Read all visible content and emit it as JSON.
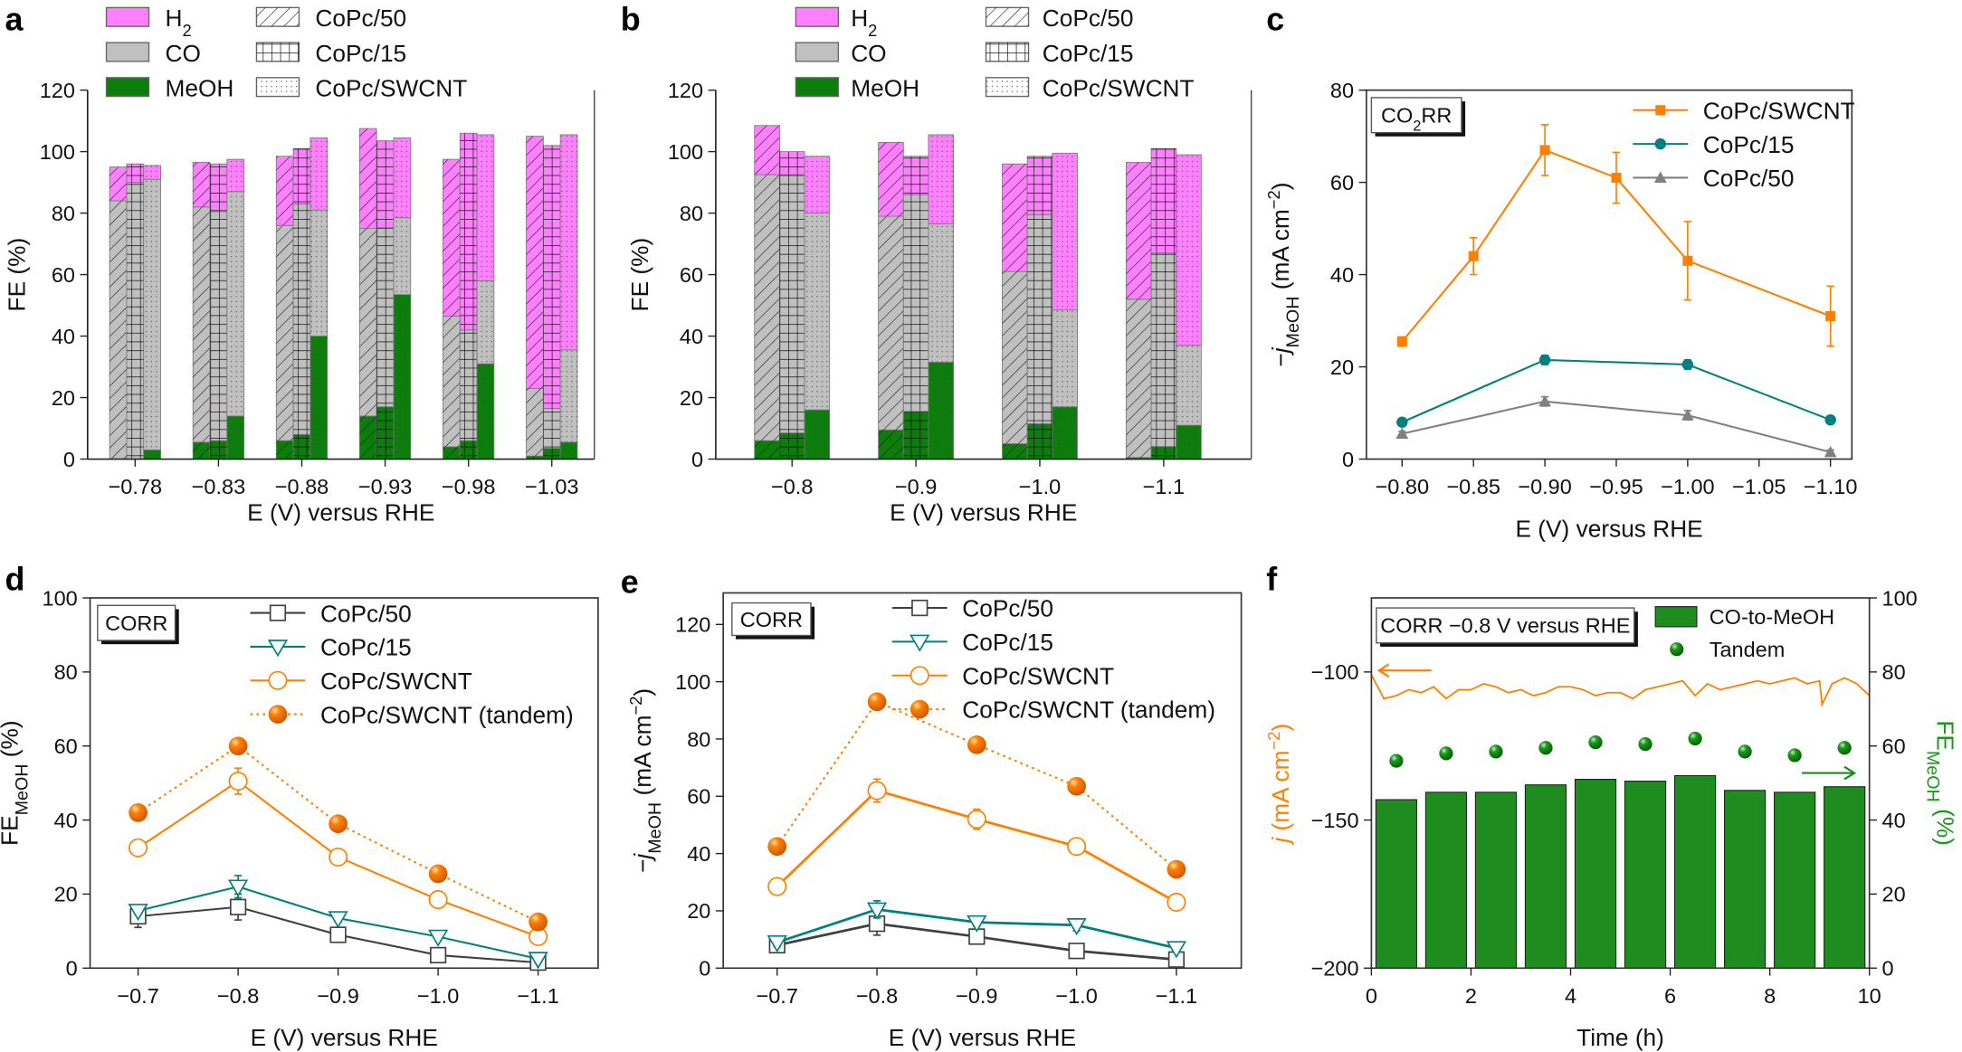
{
  "colors": {
    "H2": "#ff80ff",
    "CO": "#c0c0c0",
    "MeOH": "#0b7d0b",
    "orange": "#ff8000",
    "teal": "#008080",
    "gray": "#808080",
    "dark": "#404040",
    "bar_green": "#1e8c1e"
  },
  "chart_data": [
    {
      "panel_label": "a",
      "type": "bar",
      "stacked": true,
      "xlabel": "E (V) versus RHE",
      "ylabel": "FE (%)",
      "ylim": [
        0,
        120
      ],
      "yticks": [
        "0",
        "20",
        "40",
        "60",
        "80",
        "100",
        "120"
      ],
      "categories": [
        "−0.78",
        "−0.83",
        "−0.88",
        "−0.93",
        "−0.98",
        "−1.03"
      ],
      "legend_products": [
        {
          "key": "H2",
          "main": "H",
          "sub": "2"
        },
        {
          "key": "CO",
          "main": "CO",
          "sub": ""
        },
        {
          "key": "MeOH",
          "main": "MeOH",
          "sub": ""
        }
      ],
      "legend_catalysts": [
        {
          "name": "CoPc/50",
          "pattern": "diagonal-hatch"
        },
        {
          "name": "CoPc/15",
          "pattern": "grid"
        },
        {
          "name": "CoPc/SWCNT",
          "pattern": "dots"
        }
      ],
      "series": [
        {
          "name": "CoPc/50",
          "MeOH": [
            0,
            5.5,
            6,
            14,
            4,
            1
          ],
          "CO": [
            84,
            76.5,
            70,
            61,
            42.5,
            22
          ],
          "H2": [
            11,
            14.5,
            22.5,
            32.5,
            51,
            82
          ]
        },
        {
          "name": "CoPc/15",
          "MeOH": [
            0,
            6,
            8,
            17,
            6,
            3.5
          ],
          "CO": [
            90,
            74.5,
            75,
            58,
            36,
            13
          ],
          "H2": [
            6,
            15.5,
            18,
            28.5,
            64,
            85.5
          ]
        },
        {
          "name": "CoPc/SWCNT",
          "MeOH": [
            3,
            14,
            40,
            53.5,
            31,
            5.5
          ],
          "CO": [
            88,
            73,
            41,
            25,
            27,
            30
          ],
          "H2": [
            4.5,
            10.5,
            23.5,
            26,
            47.5,
            70
          ]
        }
      ]
    },
    {
      "panel_label": "b",
      "type": "bar",
      "stacked": true,
      "xlabel": "E (V) versus RHE",
      "ylabel": "FE (%)",
      "ylim": [
        0,
        120
      ],
      "yticks": [
        "0",
        "20",
        "40",
        "60",
        "80",
        "100",
        "120"
      ],
      "categories": [
        "−0.8",
        "−0.9",
        "−1.0",
        "−1.1"
      ],
      "legend_products": [
        {
          "key": "H2",
          "main": "H",
          "sub": "2"
        },
        {
          "key": "CO",
          "main": "CO",
          "sub": ""
        },
        {
          "key": "MeOH",
          "main": "MeOH",
          "sub": ""
        }
      ],
      "legend_catalysts": [
        {
          "name": "CoPc/50",
          "pattern": "diagonal-hatch"
        },
        {
          "name": "CoPc/15",
          "pattern": "grid"
        },
        {
          "name": "CoPc/SWCNT",
          "pattern": "dots"
        }
      ],
      "series": [
        {
          "name": "CoPc/50",
          "MeOH": [
            6,
            9.5,
            5,
            0.5
          ],
          "CO": [
            86.5,
            69.5,
            56,
            51.5
          ],
          "H2": [
            16,
            24,
            35,
            44.5
          ]
        },
        {
          "name": "CoPc/15",
          "MeOH": [
            8.5,
            15.5,
            11.5,
            4
          ],
          "CO": [
            84,
            70.5,
            68,
            63
          ],
          "H2": [
            7.5,
            12.5,
            19,
            34
          ]
        },
        {
          "name": "CoPc/SWCNT",
          "MeOH": [
            16,
            31.5,
            17,
            11
          ],
          "CO": [
            64,
            45,
            31.5,
            26
          ],
          "H2": [
            18.5,
            29,
            51,
            62
          ]
        }
      ]
    },
    {
      "panel_label": "c",
      "type": "line",
      "annotation": {
        "main": "CO",
        "sub": "2",
        "post": "RR"
      },
      "xlabel": "E (V) versus RHE",
      "ylabel_parts": [
        {
          "t": "−"
        },
        {
          "t": "j",
          "f": "italic"
        },
        {
          "t": "MeOH",
          "f": "sub"
        },
        {
          "t": " (mA cm"
        },
        {
          "t": "−2",
          "f": "sup"
        },
        {
          "t": ")"
        }
      ],
      "xlim": [
        -0.775,
        -1.115
      ],
      "ylim": [
        0,
        80
      ],
      "xticks": [
        -0.8,
        -0.85,
        -0.9,
        -0.95,
        -1.0,
        -1.05,
        -1.1
      ],
      "xtick_labels": [
        "−0.80",
        "−0.85",
        "−0.90",
        "−0.95",
        "−1.00",
        "−1.05",
        "−1.10"
      ],
      "yticks": [
        0,
        20,
        40,
        60,
        80
      ],
      "ytick_labels": [
        "0",
        "20",
        "40",
        "60",
        "80"
      ],
      "legend": "top-right",
      "series": [
        {
          "name": "CoPc/SWCNT",
          "color": "#ff8000",
          "marker": "square",
          "x": [
            -0.8,
            -0.85,
            -0.9,
            -0.95,
            -1.0,
            -1.1
          ],
          "y": [
            25.5,
            44,
            67,
            61,
            43,
            31
          ],
          "err": [
            1,
            4,
            5.5,
            5.5,
            8.5,
            6.5
          ]
        },
        {
          "name": "CoPc/15",
          "color": "#008080",
          "marker": "circle",
          "x": [
            -0.8,
            -0.9,
            -1.0,
            -1.1
          ],
          "y": [
            8,
            21.5,
            20.5,
            8.5
          ],
          "err": [
            0.5,
            1,
            1,
            0.5
          ]
        },
        {
          "name": "CoPc/50",
          "color": "#808080",
          "marker": "triangle",
          "x": [
            -0.8,
            -0.9,
            -1.0,
            -1.1
          ],
          "y": [
            5.5,
            12.5,
            9.5,
            1.5
          ],
          "err": [
            0.5,
            1,
            1,
            0.5
          ]
        }
      ]
    },
    {
      "panel_label": "d",
      "type": "line",
      "annotation": {
        "main": "CORR",
        "sub": "",
        "post": ""
      },
      "xlabel": "E (V) versus RHE",
      "ylabel_parts": [
        {
          "t": "FE"
        },
        {
          "t": "MeOH",
          "f": "sub"
        },
        {
          "t": " (%)"
        }
      ],
      "xlim": [
        -0.652,
        -1.16
      ],
      "ylim": [
        0,
        100
      ],
      "xticks": [
        -0.7,
        -0.8,
        -0.9,
        -1.0,
        -1.1
      ],
      "xtick_labels": [
        "−0.7",
        "−0.8",
        "−0.9",
        "−1.0",
        "−1.1"
      ],
      "yticks": [
        0,
        20,
        40,
        60,
        80,
        100
      ],
      "ytick_labels": [
        "0",
        "20",
        "40",
        "60",
        "80",
        "100"
      ],
      "legend": "top-center",
      "series": [
        {
          "name": "CoPc/50",
          "color": "#404040",
          "marker": "open-square",
          "x": [
            -0.7,
            -0.8,
            -0.9,
            -1.0,
            -1.1
          ],
          "y": [
            14,
            16.5,
            9,
            3.5,
            1.5
          ],
          "err": [
            3,
            3.5,
            1.5,
            1.5,
            1.5
          ]
        },
        {
          "name": "CoPc/15",
          "color": "#008080",
          "marker": "open-triangle-down",
          "x": [
            -0.7,
            -0.8,
            -0.9,
            -1.0,
            -1.1
          ],
          "y": [
            15.5,
            22,
            13.5,
            8.5,
            2.5
          ],
          "err": [
            1,
            3,
            1,
            1,
            1
          ]
        },
        {
          "name": "CoPc/SWCNT",
          "color": "#ff8000",
          "marker": "open-circle",
          "x": [
            -0.7,
            -0.8,
            -0.9,
            -1.0,
            -1.1
          ],
          "y": [
            32.5,
            50.5,
            30,
            18.5,
            8.5
          ],
          "err": [
            2,
            3.5,
            1.5,
            1.5,
            1.5
          ]
        },
        {
          "name": "CoPc/SWCNT (tandem)",
          "color": "#ff8000",
          "marker": "filled-circle",
          "dashed": true,
          "x": [
            -0.7,
            -0.8,
            -0.9,
            -1.0,
            -1.1
          ],
          "y": [
            42,
            60,
            39,
            25.5,
            12.5
          ],
          "err": [
            0,
            0,
            0,
            0,
            0
          ]
        }
      ]
    },
    {
      "panel_label": "e",
      "type": "line",
      "annotation": {
        "main": "CORR",
        "sub": "",
        "post": ""
      },
      "xlabel": "E (V) versus RHE",
      "ylabel_parts": [
        {
          "t": "−"
        },
        {
          "t": "j",
          "f": "italic"
        },
        {
          "t": "MeOH",
          "f": "sub"
        },
        {
          "t": " (mA cm"
        },
        {
          "t": "−2",
          "f": "sup"
        },
        {
          "t": ")"
        }
      ],
      "xlim": [
        -0.646,
        -1.165
      ],
      "ylim": [
        0,
        131
      ],
      "xticks": [
        -0.7,
        -0.8,
        -0.9,
        -1.0,
        -1.1
      ],
      "xtick_labels": [
        "−0.7",
        "−0.8",
        "−0.9",
        "−1.0",
        "−1.1"
      ],
      "yticks": [
        0,
        20,
        40,
        60,
        80,
        100,
        120
      ],
      "ytick_labels": [
        "0",
        "20",
        "40",
        "60",
        "80",
        "100",
        "120"
      ],
      "legend": "top-center",
      "series": [
        {
          "name": "CoPc/50",
          "color": "#404040",
          "marker": "open-square",
          "x": [
            -0.7,
            -0.8,
            -0.9,
            -1.0,
            -1.1
          ],
          "y": [
            8,
            15.5,
            11,
            6,
            3
          ],
          "err": [
            1.5,
            4,
            2,
            2,
            2
          ]
        },
        {
          "name": "CoPc/15",
          "color": "#008080",
          "marker": "open-triangle-down",
          "x": [
            -0.7,
            -0.8,
            -0.9,
            -1.0,
            -1.1
          ],
          "y": [
            9,
            20.5,
            16,
            15,
            7
          ],
          "err": [
            1.5,
            3,
            1.5,
            2,
            1
          ]
        },
        {
          "name": "CoPc/SWCNT",
          "color": "#ff8000",
          "marker": "open-circle",
          "x": [
            -0.7,
            -0.8,
            -0.9,
            -1.0,
            -1.1
          ],
          "y": [
            28.5,
            62,
            52,
            42.5,
            23
          ],
          "err": [
            1.5,
            4,
            3.5,
            1.5,
            2.5
          ]
        },
        {
          "name": "CoPc/SWCNT (tandem)",
          "color": "#ff8000",
          "marker": "filled-circle",
          "dashed": true,
          "x": [
            -0.7,
            -0.8,
            -0.9,
            -1.0,
            -1.1
          ],
          "y": [
            42.5,
            93,
            78,
            63.5,
            34.5
          ],
          "err": [
            0,
            0,
            0,
            0,
            0
          ]
        }
      ]
    },
    {
      "panel_label": "f",
      "type": "bar+line",
      "annotation": {
        "main": "CORR −0.8 V versus RHE",
        "sub": "",
        "post": ""
      },
      "xlabel": "Time (h)",
      "ylabel_left_parts": [
        {
          "t": "j",
          "f": "italic"
        },
        {
          "t": " (mA cm"
        },
        {
          "t": "−2",
          "f": "sup"
        },
        {
          "t": ")"
        }
      ],
      "ylabel_right_parts": [
        {
          "t": "FE"
        },
        {
          "t": "MeOH",
          "f": "sub"
        },
        {
          "t": " (%)"
        }
      ],
      "xlim": [
        0,
        10
      ],
      "xticks": [
        0,
        2,
        4,
        6,
        8,
        10
      ],
      "xtick_labels": [
        "0",
        "2",
        "4",
        "6",
        "8",
        "10"
      ],
      "ylim_left": [
        -200,
        -75
      ],
      "yticks_left": [
        -200,
        -150,
        -100
      ],
      "ytick_labels_left": [
        "−200",
        "−150",
        "−100"
      ],
      "ylim_right": [
        0,
        100
      ],
      "yticks_right": [
        0,
        20,
        40,
        60,
        80,
        100
      ],
      "ytick_labels_right": [
        "0",
        "20",
        "40",
        "60",
        "80",
        "100"
      ],
      "bars": {
        "name": "CO-to-MeOH",
        "x": [
          0.5,
          1.5,
          2.5,
          3.5,
          4.5,
          5.5,
          6.5,
          7.5,
          8.5,
          9.5
        ],
        "y": [
          45.5,
          47.5,
          47.5,
          49.5,
          51,
          50.5,
          52,
          48,
          47.5,
          49
        ]
      },
      "points": {
        "name": "Tandem",
        "x": [
          0.5,
          1.5,
          2.5,
          3.5,
          4.5,
          5.5,
          6.5,
          7.5,
          8.5,
          9.5
        ],
        "y": [
          56,
          58,
          58.5,
          59.5,
          61,
          60.5,
          62,
          58.5,
          57.5,
          59.5
        ]
      },
      "current": {
        "x": [
          0,
          0.25,
          0.5,
          0.75,
          1,
          1.25,
          1.5,
          1.75,
          2,
          2.25,
          2.5,
          2.75,
          3,
          3.25,
          3.5,
          3.75,
          4,
          4.25,
          4.5,
          4.75,
          5,
          5.25,
          5.5,
          5.75,
          6,
          6.25,
          6.5,
          6.75,
          7,
          7.25,
          7.5,
          7.75,
          8,
          8.25,
          8.5,
          8.75,
          9,
          9.05,
          9.25,
          9.5,
          9.75,
          10
        ],
        "y": [
          -101,
          -109,
          -108,
          -106,
          -107,
          -105,
          -109,
          -106,
          -106,
          -104,
          -105,
          -107,
          -106,
          -108,
          -107,
          -105,
          -105,
          -106,
          -108,
          -107,
          -107,
          -109,
          -106,
          -105,
          -104,
          -103,
          -108,
          -104,
          -106,
          -105,
          -104,
          -103,
          -104,
          -103,
          -102,
          -104,
          -103,
          -111,
          -104,
          -102,
          -104,
          -108
        ]
      }
    }
  ]
}
